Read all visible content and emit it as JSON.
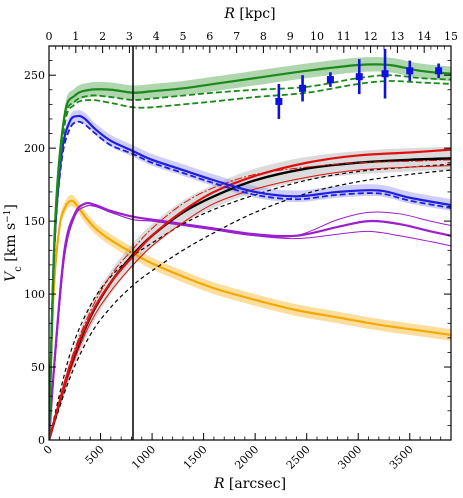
{
  "chart_data": {
    "type": "line",
    "xlabel_bottom": "R [arcsec]",
    "xlabel_top": "R [kpc]",
    "ylabel": "V_c [km s^-1]",
    "xlim_arcsec": [
      0,
      3900
    ],
    "xlim_kpc": [
      0,
      15
    ],
    "ylim": [
      0,
      270
    ],
    "x_ticks_bottom": [
      0,
      500,
      1000,
      1500,
      2000,
      2500,
      3000,
      3500
    ],
    "x_ticks_top": [
      0,
      1,
      2,
      3,
      4,
      5,
      6,
      7,
      8,
      9,
      10,
      11,
      12,
      13,
      14,
      15
    ],
    "y_ticks": [
      0,
      50,
      100,
      150,
      200,
      250
    ],
    "vertical_line_x": 815,
    "colors": {
      "total": "#1a8a1a",
      "stellar_disk": "#1f1fe0",
      "bulge": "#f5a800",
      "gas": "#9b1fcf",
      "halo_red": "#e01010",
      "halo_black": "#000000",
      "observed": "#1010e0"
    },
    "series": [
      {
        "key": "total",
        "x": [
          0,
          60,
          150,
          250,
          400,
          600,
          815,
          1000,
          1300,
          1600,
          2000,
          2500,
          3000,
          3300,
          3600,
          3900
        ],
        "y": [
          0,
          150,
          222,
          236,
          240,
          240,
          238,
          239,
          241,
          244,
          248,
          253,
          257,
          257,
          253,
          251
        ]
      },
      {
        "key": "total_dashed_1",
        "x": [
          0,
          60,
          150,
          250,
          400,
          600,
          815,
          1000,
          1300,
          1600,
          2000,
          2500,
          3000,
          3300,
          3600,
          3900
        ],
        "y": [
          0,
          145,
          218,
          232,
          236,
          235,
          233,
          234,
          236,
          238,
          240,
          242,
          248,
          250,
          248,
          247
        ]
      },
      {
        "key": "total_dashed_2",
        "x": [
          0,
          60,
          150,
          250,
          400,
          600,
          815,
          1000,
          1300,
          1600,
          2000,
          2500,
          3000,
          3300,
          3600,
          3900
        ],
        "y": [
          0,
          142,
          215,
          230,
          233,
          231,
          228,
          228,
          230,
          232,
          235,
          238,
          244,
          246,
          245,
          244
        ]
      },
      {
        "key": "stellar_disk",
        "x": [
          0,
          50,
          120,
          200,
          280,
          350,
          450,
          600,
          815,
          1000,
          1300,
          1600,
          2000,
          2400,
          2800,
          3200,
          3500,
          3900
        ],
        "y": [
          0,
          130,
          195,
          218,
          222,
          220,
          213,
          205,
          198,
          192,
          185,
          178,
          170,
          167,
          170,
          171,
          166,
          161
        ]
      },
      {
        "key": "stellar_disk_dashed",
        "x": [
          0,
          50,
          120,
          200,
          280,
          350,
          450,
          600,
          815,
          1000,
          1300,
          1600,
          2000,
          2400,
          2800,
          3200,
          3500,
          3900
        ],
        "y": [
          0,
          126,
          190,
          213,
          218,
          216,
          210,
          202,
          196,
          190,
          183,
          176,
          168,
          165,
          168,
          169,
          164,
          159
        ]
      },
      {
        "key": "bulge",
        "x": [
          0,
          40,
          100,
          160,
          220,
          280,
          350,
          450,
          600,
          815,
          1000,
          1300,
          1600,
          2000,
          2400,
          2800,
          3200,
          3600,
          3900
        ],
        "y": [
          0,
          95,
          145,
          160,
          164,
          160,
          153,
          145,
          137,
          128,
          121,
          112,
          104,
          96,
          89,
          84,
          79,
          75,
          72
        ]
      },
      {
        "key": "gas",
        "x": [
          0,
          60,
          150,
          250,
          350,
          450,
          600,
          815,
          1000,
          1300,
          1600,
          2000,
          2400,
          2800,
          3100,
          3400,
          3700,
          3900
        ],
        "y": [
          0,
          60,
          130,
          155,
          162,
          161,
          157,
          153,
          151,
          148,
          145,
          141,
          140,
          146,
          150,
          148,
          143,
          140
        ]
      },
      {
        "key": "gas_thin_1",
        "x": [
          0,
          60,
          150,
          250,
          350,
          450,
          600,
          815,
          1000,
          1300,
          1600,
          2000,
          2400,
          2800,
          3100,
          3400,
          3700,
          3900
        ],
        "y": [
          0,
          55,
          125,
          153,
          160,
          160,
          156,
          151,
          150,
          147,
          144,
          140,
          140,
          151,
          156,
          155,
          150,
          147
        ]
      },
      {
        "key": "gas_thin_2",
        "x": [
          0,
          60,
          150,
          250,
          350,
          450,
          600,
          815,
          1000,
          1300,
          1600,
          2000,
          2400,
          2800,
          3100,
          3400,
          3700,
          3900
        ],
        "y": [
          0,
          55,
          125,
          153,
          160,
          160,
          156,
          151,
          150,
          147,
          144,
          140,
          138,
          141,
          143,
          140,
          136,
          133
        ]
      },
      {
        "key": "halo_red",
        "x": [
          0,
          200,
          400,
          600,
          815,
          1000,
          1300,
          1600,
          2000,
          2500,
          3000,
          3500,
          3900
        ],
        "y": [
          0,
          50,
          85,
          108,
          126,
          140,
          157,
          170,
          181,
          190,
          195,
          197,
          199
        ]
      },
      {
        "key": "halo_red_thin_1",
        "x": [
          0,
          200,
          400,
          600,
          815,
          1000,
          1300,
          1600,
          2000,
          2500,
          3000,
          3500,
          3900
        ],
        "y": [
          0,
          52,
          88,
          113,
          131,
          145,
          162,
          173,
          182,
          187,
          190,
          191,
          192
        ]
      },
      {
        "key": "halo_red_thin_2",
        "x": [
          0,
          200,
          400,
          600,
          815,
          1000,
          1300,
          1600,
          2000,
          2500,
          3000,
          3500,
          3900
        ],
        "y": [
          0,
          46,
          80,
          102,
          120,
          133,
          149,
          162,
          172,
          180,
          185,
          187,
          188
        ]
      },
      {
        "key": "halo_black",
        "x": [
          0,
          200,
          400,
          600,
          815,
          1000,
          1300,
          1600,
          2000,
          2500,
          3000,
          3500,
          3900
        ],
        "y": [
          0,
          48,
          84,
          108,
          127,
          140,
          156,
          167,
          178,
          186,
          190,
          192,
          193
        ]
      },
      {
        "key": "halo_black_dashed_1",
        "x": [
          0,
          200,
          400,
          600,
          815,
          1000,
          1300,
          1600,
          2000,
          2500,
          3000,
          3500,
          3900
        ],
        "y": [
          0,
          58,
          92,
          112,
          126,
          135,
          148,
          158,
          168,
          178,
          184,
          187,
          189
        ]
      },
      {
        "key": "halo_black_dashed_2",
        "x": [
          0,
          200,
          400,
          600,
          815,
          1000,
          1300,
          1600,
          2000,
          2500,
          3000,
          3500,
          3900
        ],
        "y": [
          0,
          42,
          72,
          91,
          106,
          116,
          130,
          142,
          156,
          169,
          177,
          182,
          185
        ]
      }
    ],
    "observed_points": [
      {
        "x": 2230,
        "y": 232,
        "yerr": 12
      },
      {
        "x": 2460,
        "y": 241,
        "yerr": 9
      },
      {
        "x": 2730,
        "y": 247,
        "yerr": 5
      },
      {
        "x": 3010,
        "y": 249,
        "yerr": 12
      },
      {
        "x": 3260,
        "y": 251,
        "yerr": 17
      },
      {
        "x": 3500,
        "y": 253,
        "yerr": 7
      },
      {
        "x": 3780,
        "y": 253,
        "yerr": 5
      }
    ]
  }
}
